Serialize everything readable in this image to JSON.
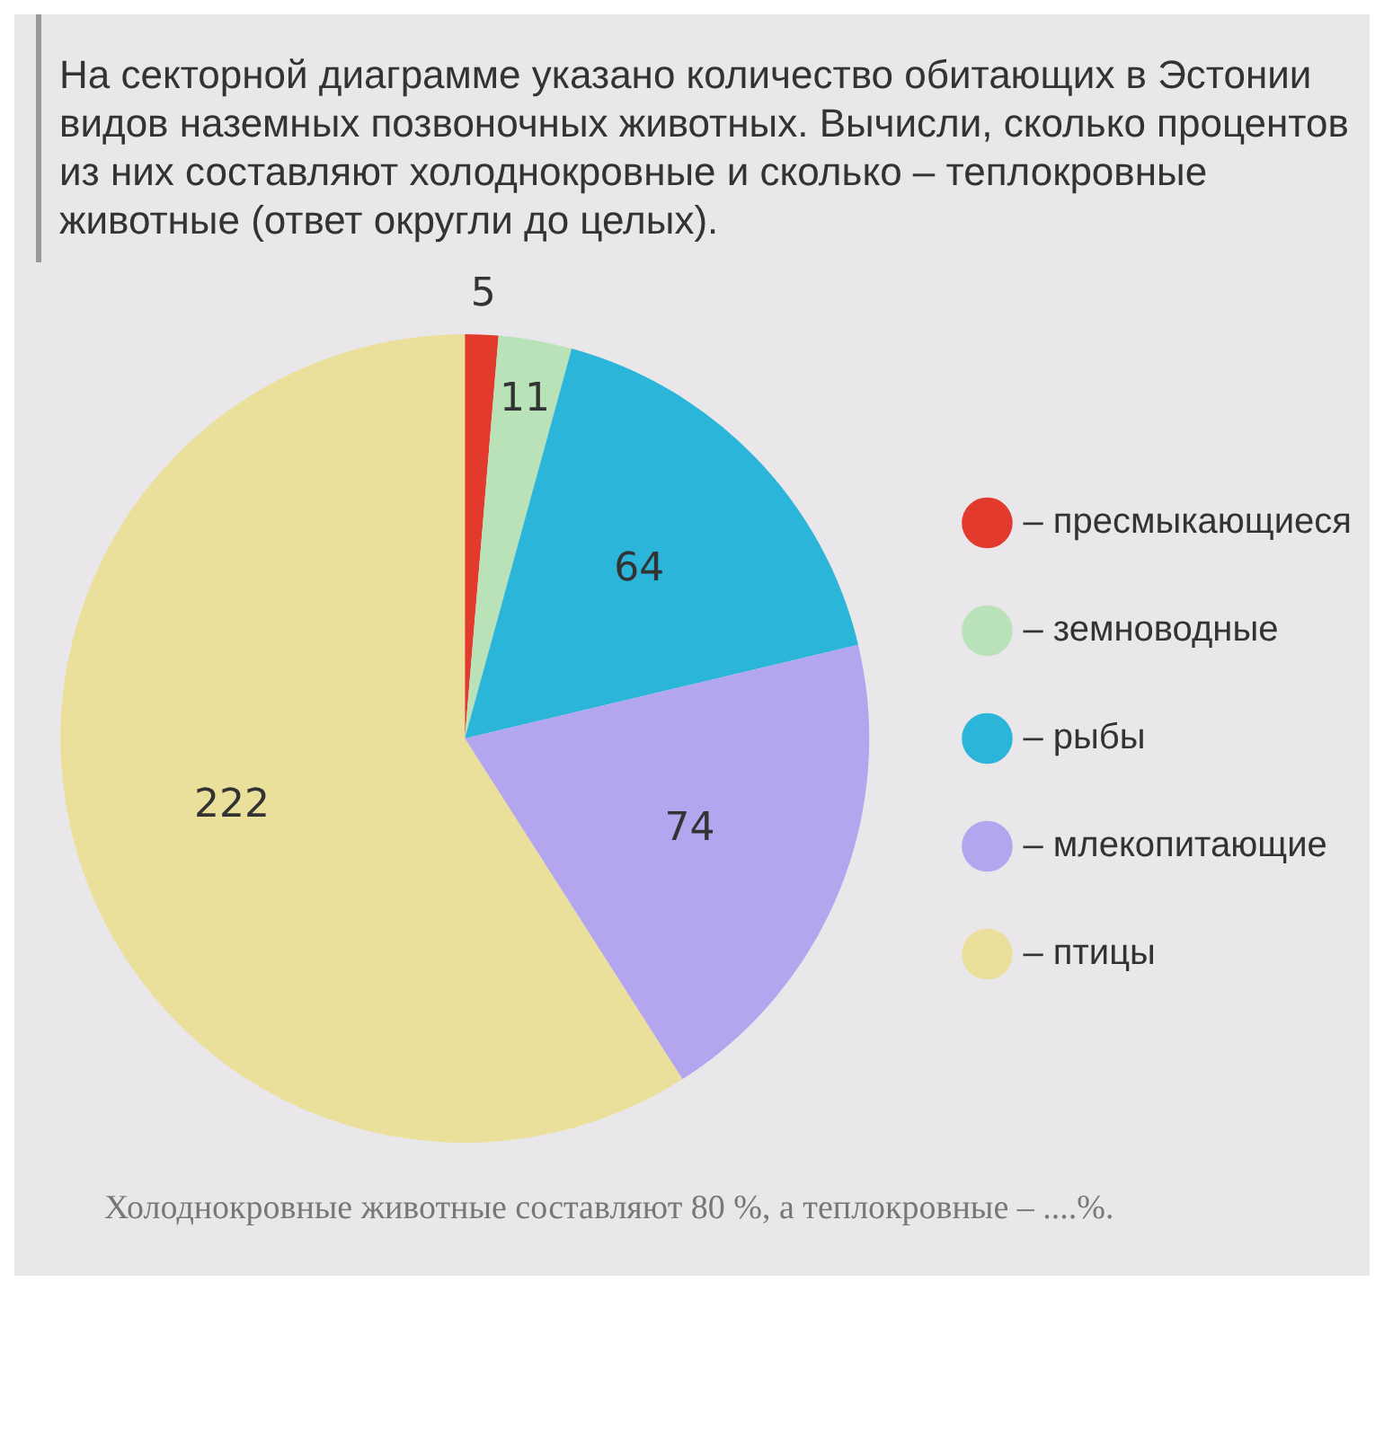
{
  "chart_data": {
    "type": "pie",
    "title": "На секторной диаграмме указано количество обитающих в Эстонии видов наземных позвоночных животных. Вычисли, сколько процентов из них составляют холоднокровные и сколько – теплокровные животные (ответ округли до целых).",
    "categories": [
      "– пресмыкающиеся",
      "– земноводные",
      "– рыбы",
      "– млекопитающие",
      "– птицы"
    ],
    "values": [
      5,
      11,
      64,
      74,
      222
    ],
    "colors": [
      "#e23b2e",
      "#b9e2b9",
      "#2bb5d9",
      "#b3a6ee",
      "#ebe09b"
    ],
    "data_labels": true,
    "legend": "right",
    "annotations": [
      "Холоднокровные животные составляют 80 %, а теплокровные – ....%."
    ]
  }
}
